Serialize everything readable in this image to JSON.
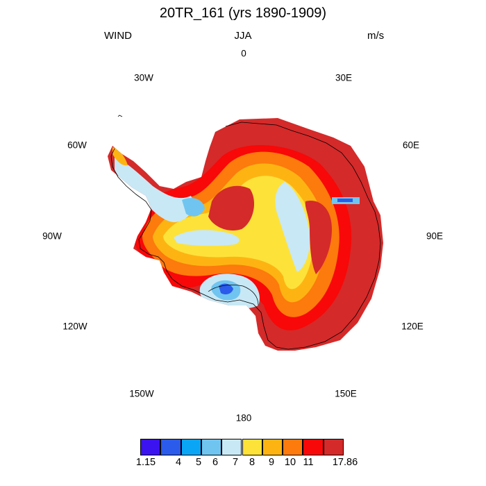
{
  "header": {
    "title": "20TR_161 (yrs 1890-1909)",
    "left": "WIND",
    "center": "JJA",
    "right": "m/s"
  },
  "longitude_labels": [
    "0",
    "30E",
    "60E",
    "90E",
    "120E",
    "150E",
    "180",
    "150W",
    "120W",
    "90W",
    "60W",
    "30W"
  ],
  "colorbar": {
    "colors": [
      "#3b13f0",
      "#2a5bea",
      "#0aa6f5",
      "#70c5f0",
      "#c8e8f5",
      "#fde23a",
      "#fdb413",
      "#fd7a0c",
      "#f80808",
      "#d42a2a"
    ],
    "labels": [
      "1.15",
      "4",
      "5",
      "6",
      "7",
      "8",
      "9",
      "10",
      "11",
      "17.86"
    ]
  },
  "map": {
    "region": "antarctica",
    "projection": "south-polar-stereographic",
    "coastline_color": "#000000"
  }
}
